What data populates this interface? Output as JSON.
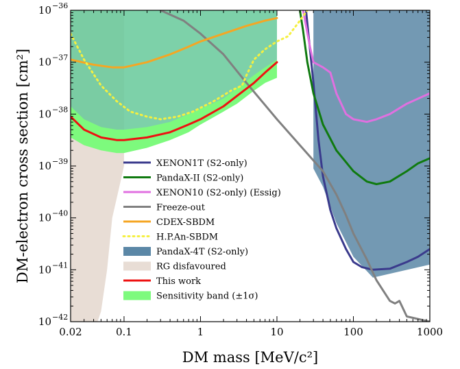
{
  "chart_data": {
    "type": "line",
    "xlabel": "DM mass [MeV/c²]",
    "ylabel": "DM-electron cross section [cm²]",
    "xscale": "log",
    "yscale": "log",
    "xlim": [
      0.02,
      1000
    ],
    "ylim": [
      1e-42,
      1e-36
    ],
    "x_ticks": [
      {
        "value": 0.02,
        "label": "0.02"
      },
      {
        "value": 0.1,
        "label": "0.1"
      },
      {
        "value": 1,
        "label": "1"
      },
      {
        "value": 10,
        "label": "10"
      },
      {
        "value": 100,
        "label": "100"
      },
      {
        "value": 1000,
        "label": "1000"
      }
    ],
    "y_ticks": [
      {
        "exp": -42,
        "base": "10",
        "sup": "−42"
      },
      {
        "exp": -41,
        "base": "10",
        "sup": "−41"
      },
      {
        "exp": -40,
        "base": "10",
        "sup": "−40"
      },
      {
        "exp": -39,
        "base": "10",
        "sup": "−39"
      },
      {
        "exp": -38,
        "base": "10",
        "sup": "−38"
      },
      {
        "exp": -37,
        "base": "10",
        "sup": "−37"
      },
      {
        "exp": -36,
        "base": "10",
        "sup": "−36"
      }
    ],
    "legend": {
      "placement": "center",
      "entries": [
        {
          "label": "XENON1T (S2-only)",
          "kind": "line",
          "color": "#3a3a8c",
          "dash": ""
        },
        {
          "label": "PandaX-II (S2-only)",
          "kind": "line",
          "color": "#0f7a0f",
          "dash": ""
        },
        {
          "label": "XENON10 (S2-only) (Essig)",
          "kind": "line",
          "color": "#e070e0",
          "dash": ""
        },
        {
          "label": "Freeze-out",
          "kind": "line",
          "color": "#808080",
          "dash": ""
        },
        {
          "label": "CDEX-SBDM",
          "kind": "line",
          "color": "#f5a623",
          "dash": ""
        },
        {
          "label": "H.P.An-SBDM",
          "kind": "line",
          "color": "#f5f040",
          "dash": "2 5"
        },
        {
          "label": "PandaX-4T (S2-only)",
          "kind": "patch",
          "color": "#5b87a6"
        },
        {
          "label": "RG disfavoured",
          "kind": "patch",
          "color": "#e8ddd5"
        },
        {
          "label": "This work",
          "kind": "line",
          "color": "#ee1111",
          "dash": ""
        },
        {
          "label": "Sensitivity band (±1σ)",
          "kind": "patch",
          "color": "#7dfa7d"
        }
      ]
    },
    "regions": [
      {
        "name": "rg-disfavoured",
        "color": "#e8ddd5",
        "opacity": 1,
        "boundary": [
          [
            0.02,
            -36.0
          ],
          [
            0.1,
            -36.0
          ],
          [
            0.1,
            -39.0
          ],
          [
            0.09,
            -39.3
          ],
          [
            0.07,
            -40.0
          ],
          [
            0.06,
            -41.0
          ],
          [
            0.05,
            -41.8
          ],
          [
            0.045,
            -42.0
          ],
          [
            0.02,
            -42.0
          ]
        ]
      },
      {
        "name": "pandax-4t-region",
        "color": "#5b87a6",
        "opacity": 0.85,
        "boundary": [
          [
            30,
            -36.0
          ],
          [
            30,
            -39.05
          ],
          [
            40,
            -39.4
          ],
          [
            60,
            -40.1
          ],
          [
            100,
            -40.75
          ],
          [
            180,
            -41.15
          ],
          [
            1000,
            -40.9
          ],
          [
            1000,
            -36.0
          ]
        ]
      },
      {
        "name": "green-exclusion-region",
        "color": "#66c99a",
        "opacity": 0.85,
        "boundary": [
          [
            0.02,
            -36.0
          ],
          [
            10,
            -36.0
          ],
          [
            10,
            -37.0
          ],
          [
            8,
            -37.05
          ],
          [
            6,
            -37.25
          ],
          [
            4,
            -37.55
          ],
          [
            3,
            -37.75
          ],
          [
            2,
            -37.95
          ],
          [
            1,
            -38.2
          ],
          [
            0.5,
            -38.4
          ],
          [
            0.3,
            -38.5
          ],
          [
            0.2,
            -38.55
          ],
          [
            0.1,
            -38.6
          ],
          [
            0.07,
            -38.6
          ],
          [
            0.04,
            -38.55
          ],
          [
            0.02,
            -38.3
          ]
        ]
      }
    ],
    "band": {
      "name": "sensitivity-band",
      "color": "#7dfa7d",
      "upper": [
        [
          0.02,
          -37.85
        ],
        [
          0.03,
          -38.1
        ],
        [
          0.05,
          -38.25
        ],
        [
          0.08,
          -38.3
        ],
        [
          0.1,
          -38.3
        ],
        [
          0.2,
          -38.25
        ],
        [
          0.4,
          -38.15
        ],
        [
          0.7,
          -38.0
        ],
        [
          1,
          -37.9
        ],
        [
          2,
          -37.7
        ],
        [
          3,
          -37.5
        ],
        [
          5,
          -37.25
        ],
        [
          7,
          -37.1
        ],
        [
          10,
          -36.95
        ]
      ],
      "lower": [
        [
          0.02,
          -38.45
        ],
        [
          0.03,
          -38.6
        ],
        [
          0.05,
          -38.7
        ],
        [
          0.08,
          -38.75
        ],
        [
          0.1,
          -38.75
        ],
        [
          0.2,
          -38.65
        ],
        [
          0.4,
          -38.5
        ],
        [
          0.7,
          -38.35
        ],
        [
          1,
          -38.2
        ],
        [
          2,
          -37.95
        ],
        [
          3,
          -37.8
        ],
        [
          5,
          -37.55
        ],
        [
          7,
          -37.4
        ],
        [
          10,
          -37.3
        ]
      ]
    },
    "series": [
      {
        "name": "XENON1T (S2-only)",
        "color": "#3a3a8c",
        "width": 3,
        "dash": "",
        "points": [
          [
            24,
            -36.0
          ],
          [
            26,
            -36.5
          ],
          [
            30,
            -37.4
          ],
          [
            35,
            -38.5
          ],
          [
            40,
            -39.2
          ],
          [
            50,
            -39.85
          ],
          [
            60,
            -40.2
          ],
          [
            80,
            -40.6
          ],
          [
            100,
            -40.85
          ],
          [
            130,
            -40.95
          ],
          [
            180,
            -41.0
          ],
          [
            300,
            -40.98
          ],
          [
            500,
            -40.85
          ],
          [
            700,
            -40.75
          ],
          [
            1000,
            -40.6
          ]
        ]
      },
      {
        "name": "PandaX-II (S2-only)",
        "color": "#0f7a0f",
        "width": 3,
        "dash": "",
        "points": [
          [
            20,
            -36.0
          ],
          [
            22,
            -36.4
          ],
          [
            25,
            -37.0
          ],
          [
            30,
            -37.6
          ],
          [
            40,
            -38.2
          ],
          [
            60,
            -38.7
          ],
          [
            100,
            -39.1
          ],
          [
            150,
            -39.3
          ],
          [
            200,
            -39.35
          ],
          [
            300,
            -39.3
          ],
          [
            500,
            -39.1
          ],
          [
            700,
            -38.95
          ],
          [
            1000,
            -38.85
          ]
        ]
      },
      {
        "name": "XENON10 (S2-only) (Essig)",
        "color": "#e070e0",
        "width": 3,
        "dash": "",
        "points": [
          [
            22,
            -36.0
          ],
          [
            24,
            -36.3
          ],
          [
            27,
            -36.7
          ],
          [
            30,
            -37.0
          ],
          [
            40,
            -37.1
          ],
          [
            50,
            -37.2
          ],
          [
            60,
            -37.6
          ],
          [
            80,
            -38.0
          ],
          [
            100,
            -38.1
          ],
          [
            150,
            -38.15
          ],
          [
            200,
            -38.1
          ],
          [
            300,
            -38.0
          ],
          [
            500,
            -37.8
          ],
          [
            1000,
            -37.6
          ]
        ]
      },
      {
        "name": "Freeze-out",
        "color": "#808080",
        "width": 3,
        "dash": "",
        "points": [
          [
            0.3,
            -36.0
          ],
          [
            0.6,
            -36.2
          ],
          [
            1,
            -36.45
          ],
          [
            2,
            -36.85
          ],
          [
            4,
            -37.4
          ],
          [
            10,
            -38.1
          ],
          [
            20,
            -38.6
          ],
          [
            40,
            -39.1
          ],
          [
            60,
            -39.55
          ],
          [
            80,
            -39.95
          ],
          [
            100,
            -40.3
          ],
          [
            150,
            -40.8
          ],
          [
            200,
            -41.2
          ],
          [
            300,
            -41.6
          ],
          [
            350,
            -41.65
          ],
          [
            400,
            -41.6
          ],
          [
            500,
            -41.9
          ],
          [
            1000,
            -42.0
          ]
        ]
      },
      {
        "name": "CDEX-SBDM",
        "color": "#f5a623",
        "width": 3,
        "dash": "",
        "points": [
          [
            0.02,
            -36.95
          ],
          [
            0.04,
            -37.05
          ],
          [
            0.07,
            -37.1
          ],
          [
            0.1,
            -37.1
          ],
          [
            0.2,
            -37.0
          ],
          [
            0.4,
            -36.85
          ],
          [
            0.7,
            -36.7
          ],
          [
            1,
            -36.6
          ],
          [
            2,
            -36.45
          ],
          [
            4,
            -36.3
          ],
          [
            7,
            -36.2
          ],
          [
            10,
            -36.15
          ]
        ]
      },
      {
        "name": "H.P.An-SBDM",
        "color": "#f5f040",
        "width": 3,
        "dash": "2 5",
        "points": [
          [
            0.02,
            -36.45
          ],
          [
            0.03,
            -36.95
          ],
          [
            0.05,
            -37.45
          ],
          [
            0.08,
            -37.75
          ],
          [
            0.12,
            -37.95
          ],
          [
            0.2,
            -38.05
          ],
          [
            0.3,
            -38.1
          ],
          [
            0.5,
            -38.05
          ],
          [
            0.8,
            -37.95
          ],
          [
            1.5,
            -37.75
          ],
          [
            2.5,
            -37.55
          ],
          [
            3.5,
            -37.45
          ],
          [
            4,
            -37.25
          ],
          [
            5,
            -36.95
          ],
          [
            7,
            -36.75
          ],
          [
            10,
            -36.6
          ],
          [
            14,
            -36.5
          ],
          [
            20,
            -36.2
          ],
          [
            25,
            -36.0
          ]
        ]
      },
      {
        "name": "This work",
        "color": "#ee1111",
        "width": 3,
        "dash": "",
        "points": [
          [
            0.02,
            -38.05
          ],
          [
            0.03,
            -38.3
          ],
          [
            0.05,
            -38.45
          ],
          [
            0.08,
            -38.5
          ],
          [
            0.1,
            -38.5
          ],
          [
            0.2,
            -38.45
          ],
          [
            0.4,
            -38.35
          ],
          [
            0.7,
            -38.2
          ],
          [
            1,
            -38.1
          ],
          [
            2,
            -37.85
          ],
          [
            3,
            -37.65
          ],
          [
            5,
            -37.4
          ],
          [
            7,
            -37.2
          ],
          [
            10,
            -37.0
          ]
        ]
      }
    ]
  }
}
